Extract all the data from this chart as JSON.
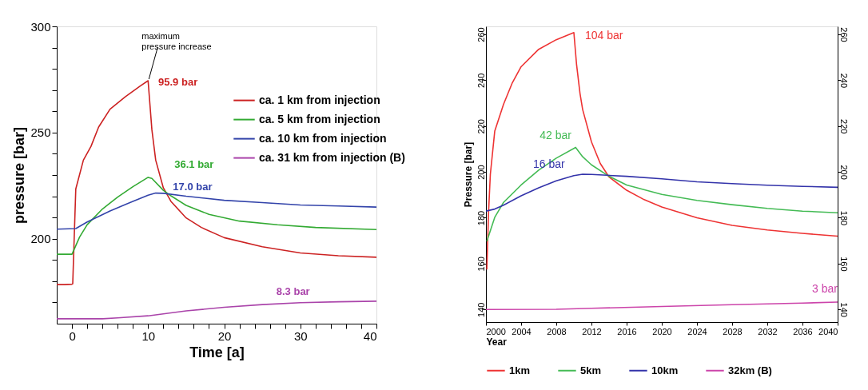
{
  "chart_data": [
    {
      "type": "line",
      "xlabel": "Time [a]",
      "ylabel": "pressure [bar]",
      "xlim": [
        -2,
        40
      ],
      "ylim": [
        160,
        300
      ],
      "xticks": [
        0,
        {
          "value": 2,
          "label": null
        },
        {
          "value": 4,
          "label": null
        },
        {
          "value": 6,
          "label": null
        },
        {
          "value": 8,
          "label": null
        },
        10,
        {
          "value": 12,
          "label": null
        },
        {
          "value": 14,
          "label": null
        },
        {
          "value": 16,
          "label": null
        },
        {
          "value": 18,
          "label": null
        },
        20,
        {
          "value": 22,
          "label": null
        },
        {
          "value": 24,
          "label": null
        },
        {
          "value": 26,
          "label": null
        },
        {
          "value": 28,
          "label": null
        },
        30,
        {
          "value": 32,
          "label": null
        },
        {
          "value": 34,
          "label": null
        },
        {
          "value": 36,
          "label": null
        },
        {
          "value": 38,
          "label": null
        },
        40
      ],
      "yticks": [
        {
          "value": 170,
          "label": null
        },
        {
          "value": 180,
          "label": null
        },
        {
          "value": 190,
          "label": null
        },
        200,
        {
          "value": 210,
          "label": null
        },
        {
          "value": 220,
          "label": null
        },
        {
          "value": 230,
          "label": null
        },
        {
          "value": 240,
          "label": null
        },
        250,
        {
          "value": 260,
          "label": null
        },
        {
          "value": 270,
          "label": null
        },
        {
          "value": 280,
          "label": null
        },
        {
          "value": 290,
          "label": null
        },
        300
      ],
      "grid": false,
      "legend": "right",
      "marker": "none",
      "line_style": "solid",
      "series": [
        {
          "name": "ca. 1 km from injection",
          "color": "#cc2222",
          "x": [
            -2,
            -1,
            0,
            0.1,
            0.5,
            1.5,
            2.5,
            3.5,
            5,
            7,
            9,
            10,
            10.5,
            11,
            12,
            13,
            15,
            17,
            20,
            25,
            30,
            35,
            40
          ],
          "values": [
            178.4,
            178.4,
            178.6,
            178.8,
            223.4,
            237,
            243.5,
            252.6,
            261,
            266.8,
            272,
            274.4,
            251.3,
            237,
            224,
            217.6,
            209.8,
            205.3,
            200.5,
            196.2,
            193.3,
            192,
            191.3
          ]
        },
        {
          "name": "ca. 5 km from injection",
          "color": "#33aa33",
          "x": [
            -2,
            0,
            0.2,
            1,
            2,
            4,
            6,
            8,
            10,
            10.5,
            12,
            13,
            15,
            18,
            22,
            27,
            32,
            40
          ],
          "values": [
            192.7,
            192.7,
            194.3,
            200.8,
            206.6,
            214,
            219.6,
            224.5,
            228.9,
            228.4,
            222.8,
            220.2,
            215.7,
            211.5,
            208.3,
            206.6,
            205.3,
            204.3
          ]
        },
        {
          "name": "ca. 10 km from injection",
          "color": "#3344aa",
          "x": [
            -2,
            0.5,
            2,
            5,
            8,
            10,
            11,
            12,
            15,
            20,
            25,
            30,
            35,
            40
          ],
          "values": [
            204.5,
            204.8,
            207.9,
            213.1,
            217.6,
            220.5,
            221.5,
            221.4,
            220,
            218.1,
            217,
            215.9,
            215.4,
            214.9
          ]
        },
        {
          "name": "ca. 31 km from injection (B)",
          "color": "#aa44aa",
          "x": [
            -2,
            4,
            6,
            10,
            15,
            20,
            25,
            30,
            35,
            40
          ],
          "values": [
            162.3,
            162.3,
            162.7,
            163.7,
            166,
            167.7,
            169,
            169.9,
            170.3,
            170.6
          ]
        }
      ],
      "annotations": [
        {
          "text": "95.9 bar",
          "x": 10.5,
          "y": 274.4
        },
        {
          "text": "36.1 bar",
          "x": 12.2,
          "y": 228.9
        },
        {
          "text": "17.0 bar",
          "x": 12,
          "y": 221.4
        },
        {
          "text": "8.3 bar",
          "x": 30,
          "y": 169.9
        },
        {
          "text": "maximum\npressure increase",
          "x": 10,
          "y": 274.4
        }
      ]
    },
    {
      "type": "line",
      "xlabel": "Year",
      "ylabel": "Pressure [bar]",
      "xlim": [
        2000,
        2040
      ],
      "ylim": [
        134.5,
        263.5
      ],
      "y2lim": [
        134.5,
        263.5
      ],
      "xticks": [
        2000,
        2004,
        2008,
        2012,
        2016,
        2020,
        2024,
        2028,
        2032,
        2036,
        2040
      ],
      "yticks": [
        140,
        160,
        180,
        200,
        220,
        240,
        260
      ],
      "y2ticks": [
        140,
        160,
        180,
        200,
        220,
        240,
        260
      ],
      "grid": false,
      "legend": "bottom",
      "marker": "none",
      "line_style": "solid",
      "series": [
        {
          "name": "1km",
          "color": "#ee3333",
          "x": [
            2000.1,
            2000.3,
            2000.5,
            2001,
            2002,
            2003,
            2004,
            2006,
            2008,
            2010,
            2010.3,
            2010.7,
            2011,
            2012,
            2013,
            2014,
            2016,
            2018,
            2020,
            2024,
            2028,
            2032,
            2036,
            2040
          ],
          "values": [
            157.4,
            182.6,
            199,
            217.8,
            229.5,
            238.9,
            245.9,
            253.5,
            257.7,
            260.8,
            247.1,
            234.2,
            227.2,
            213.1,
            203.7,
            197.8,
            192,
            187.9,
            184.7,
            180,
            176.7,
            174.7,
            173.2,
            172
          ]
        },
        {
          "name": "5km",
          "color": "#44bb55",
          "x": [
            2000.1,
            2001,
            2002,
            2004,
            2006,
            2008,
            2010.2,
            2011,
            2012,
            2014,
            2016,
            2020,
            2024,
            2028,
            2032,
            2036,
            2040
          ],
          "values": [
            169.7,
            180.2,
            186.7,
            194.3,
            200.8,
            206,
            210.7,
            206.6,
            203.1,
            198.1,
            194.3,
            190.2,
            187.6,
            185.7,
            184.1,
            182.9,
            182.2
          ]
        },
        {
          "name": "10km",
          "color": "#3333aa",
          "x": [
            2000,
            2001,
            2002,
            2004,
            2006,
            2008,
            2010,
            2011,
            2012,
            2016,
            2020,
            2024,
            2028,
            2032,
            2036,
            2040
          ],
          "values": [
            182.9,
            183.8,
            185.5,
            189.6,
            193.1,
            196.1,
            198.4,
            199,
            198.9,
            198.1,
            197,
            195.7,
            194.9,
            194.2,
            193.7,
            193.3
          ]
        },
        {
          "name": "32km (B)",
          "color": "#cc44aa",
          "x": [
            2000,
            2008,
            2012,
            2020,
            2028,
            2036,
            2040
          ],
          "values": [
            140,
            140.1,
            140.5,
            141.3,
            142.1,
            142.8,
            143.2
          ]
        }
      ],
      "annotations": [
        {
          "text": "104 bar",
          "x": 2010,
          "y": 260.8
        },
        {
          "text": "42 bar",
          "x": 2010.2,
          "y": 210.7
        },
        {
          "text": "16 bar",
          "x": 2011,
          "y": 199
        },
        {
          "text": "3 bar",
          "x": 2040,
          "y": 143.2
        }
      ]
    }
  ]
}
